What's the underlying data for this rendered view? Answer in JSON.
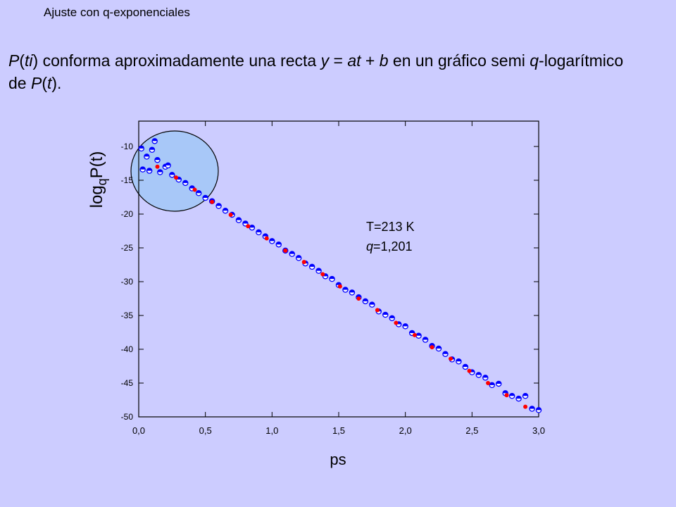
{
  "header": {
    "title": "Ajuste con q-exponenciales"
  },
  "paragraph": [
    "P",
    "(",
    "ti",
    ") conforma aproximadamente una recta ",
    "y",
    " = ",
    "at",
    " + ",
    "b",
    " en un gráfico semi ",
    "q",
    "-logarítmico de ",
    "P",
    "(",
    "t",
    ")."
  ],
  "chart_data": {
    "type": "scatter",
    "xlabel": "ps",
    "ylabel": [
      "log",
      "q",
      "P(t)"
    ],
    "annotations": [
      "T=213 K",
      [
        "q",
        "=1,201"
      ]
    ],
    "xlim": [
      0,
      3
    ],
    "ylim": [
      -50,
      -6.25
    ],
    "xticks": [
      {
        "value": 0,
        "label": "0,0"
      },
      {
        "value": 0.5,
        "label": "0,5"
      },
      {
        "value": 1,
        "label": "1,0"
      },
      {
        "value": 1.5,
        "label": "1,5"
      },
      {
        "value": 2,
        "label": "2,0"
      },
      {
        "value": 2.5,
        "label": "2,5"
      },
      {
        "value": 3,
        "label": "3,0"
      }
    ],
    "yticks": [
      -10,
      -15,
      -20,
      -25,
      -30,
      -35,
      -40,
      -45,
      -50
    ],
    "series": [
      {
        "color": "#0000ff",
        "x": [
          0.02,
          0.03,
          0.06,
          0.08,
          0.1,
          0.12,
          0.14,
          0.16,
          0.2,
          0.22,
          0.25,
          0.3,
          0.35,
          0.4,
          0.45,
          0.5,
          0.55,
          0.6,
          0.65,
          0.7,
          0.75,
          0.8,
          0.85,
          0.9,
          0.95,
          1.0,
          1.05,
          1.1,
          1.15,
          1.2,
          1.25,
          1.3,
          1.35,
          1.4,
          1.45,
          1.5,
          1.55,
          1.6,
          1.65,
          1.7,
          1.75,
          1.8,
          1.85,
          1.9,
          1.95,
          2.0,
          2.05,
          2.1,
          2.15,
          2.2,
          2.25,
          2.3,
          2.35,
          2.4,
          2.45,
          2.5,
          2.55,
          2.6,
          2.65,
          2.7,
          2.75,
          2.8,
          2.85,
          2.9,
          2.95,
          3.0
        ],
        "values": [
          -10.3,
          -13.4,
          -11.5,
          -13.6,
          -10.5,
          -9.2,
          -12.0,
          -13.8,
          -13.0,
          -12.8,
          -14.2,
          -14.9,
          -15.4,
          -16.2,
          -16.9,
          -17.6,
          -18.1,
          -18.8,
          -19.5,
          -20.1,
          -20.9,
          -21.4,
          -22.0,
          -22.7,
          -23.3,
          -24.0,
          -24.5,
          -25.4,
          -25.9,
          -26.5,
          -27.3,
          -27.8,
          -28.4,
          -29.2,
          -29.6,
          -30.5,
          -31.2,
          -31.6,
          -32.3,
          -32.9,
          -33.4,
          -34.4,
          -34.9,
          -35.4,
          -36.3,
          -36.6,
          -37.6,
          -38.0,
          -38.6,
          -39.5,
          -39.9,
          -40.7,
          -41.5,
          -41.8,
          -42.6,
          -43.4,
          -43.8,
          -44.2,
          -45.3,
          -45.1,
          -46.5,
          -46.9,
          -47.3,
          -46.9,
          -48.8,
          -49.0
        ]
      },
      {
        "color": "#ff0000",
        "x": [
          0.14,
          0.28,
          0.42,
          0.55,
          0.69,
          0.82,
          0.96,
          1.1,
          1.24,
          1.38,
          1.51,
          1.65,
          1.79,
          1.93,
          2.07,
          2.2,
          2.34,
          2.48,
          2.62,
          2.76,
          2.9
        ],
        "values": [
          -13.0,
          -14.6,
          -16.4,
          -18.2,
          -20.1,
          -21.8,
          -23.6,
          -25.4,
          -27.1,
          -28.9,
          -30.7,
          -32.5,
          -34.2,
          -36.1,
          -37.9,
          -39.7,
          -41.4,
          -43.2,
          -45.0,
          -46.8,
          -48.5
        ]
      }
    ]
  }
}
